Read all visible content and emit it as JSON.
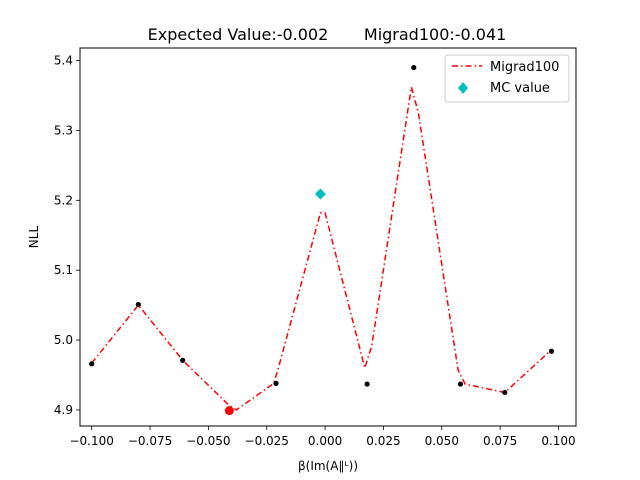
{
  "chart_data": {
    "type": "line",
    "title": "Expected Value:-0.002       Migrad100:-0.041",
    "xlabel": "β(Im(A∥ᴸ))",
    "ylabel": "NLL",
    "xlim": [
      -0.105,
      0.1075
    ],
    "ylim": [
      4.877,
      5.418
    ],
    "xticks": [
      -0.1,
      -0.075,
      -0.05,
      -0.025,
      0.0,
      0.025,
      0.05,
      0.075,
      0.1
    ],
    "xtick_labels": [
      "−0.100",
      "−0.075",
      "−0.050",
      "−0.025",
      "0.000",
      "0.025",
      "0.050",
      "0.075",
      "0.100"
    ],
    "yticks": [
      4.9,
      5.0,
      5.1,
      5.2,
      5.3,
      5.4
    ],
    "ytick_labels": [
      "4.9",
      "5.0",
      "5.1",
      "5.2",
      "5.3",
      "5.4"
    ],
    "grid": false,
    "legend_position": "upper-right",
    "series": [
      {
        "name": "Migrad100",
        "type": "line",
        "style": "dash-dot",
        "color": "#ff0000",
        "x": [
          -0.1,
          -0.08,
          -0.061,
          -0.041,
          -0.038,
          -0.022,
          -0.02,
          -0.002,
          0.0,
          0.017,
          0.02,
          0.037,
          0.04,
          0.057,
          0.06,
          0.077,
          0.097
        ],
        "y": [
          4.967,
          5.05,
          4.971,
          4.906,
          4.9,
          4.938,
          4.96,
          5.182,
          5.182,
          4.96,
          4.992,
          5.362,
          5.325,
          4.957,
          4.937,
          4.925,
          4.986
        ]
      },
      {
        "name": "",
        "type": "scatter",
        "color": "#000000",
        "x": [
          -0.1,
          -0.08,
          -0.061,
          -0.041,
          -0.021,
          0.018,
          0.038,
          0.058,
          0.077,
          0.097
        ],
        "y": [
          4.966,
          5.051,
          4.971,
          4.899,
          4.938,
          4.937,
          5.39,
          4.937,
          4.925,
          4.984
        ]
      },
      {
        "name": "",
        "type": "marker",
        "color": "#ff0000",
        "x": [
          -0.041
        ],
        "y": [
          4.899
        ]
      },
      {
        "name": "MC value",
        "type": "marker",
        "marker": "diamond",
        "color": "#00bfbf",
        "x": [
          -0.002
        ],
        "y": [
          5.209
        ]
      }
    ]
  }
}
